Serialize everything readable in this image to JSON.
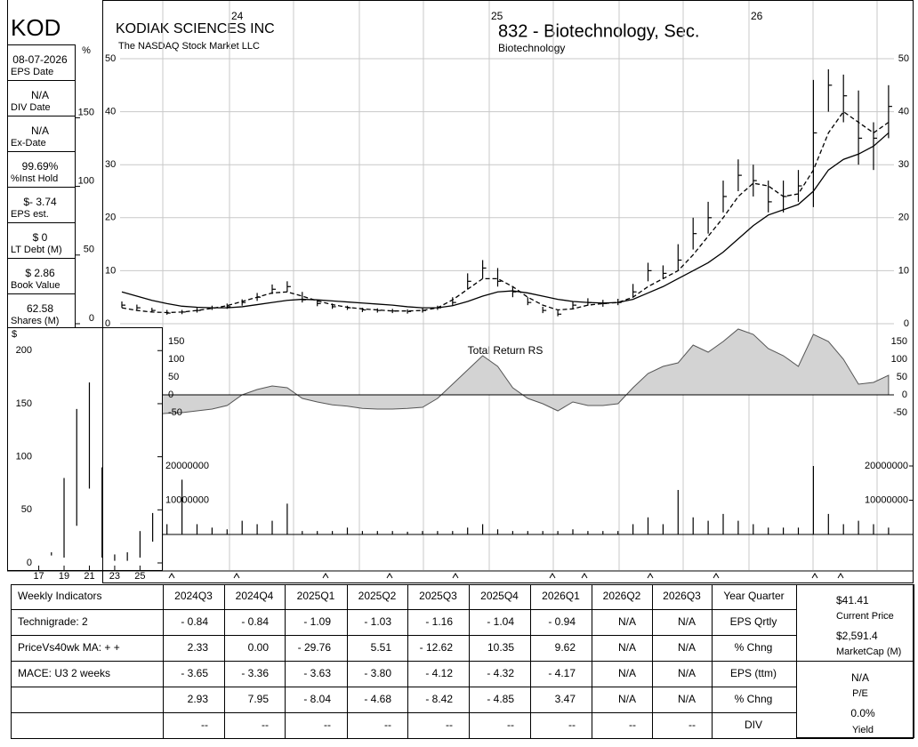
{
  "ticker": "KOD",
  "info": [
    {
      "value": "08-07-2026",
      "label": "EPS Date"
    },
    {
      "value": "N/A",
      "label": "DIV Date"
    },
    {
      "value": "N/A",
      "label": "Ex-Date"
    },
    {
      "value": "99.69%",
      "label": "%Inst Hold"
    },
    {
      "value": "$- 3.74",
      "label": "EPS est."
    },
    {
      "value": "$ 0",
      "label": "LT Debt (M)"
    },
    {
      "value": "$ 2.86",
      "label": "Book Value"
    },
    {
      "value": "62.58",
      "label": "Shares (M)"
    }
  ],
  "chart_data": [
    {
      "type": "hlc",
      "title": "KODIAK SCIENCES INC",
      "subtitle": "The NASDAQ Stock Market LLC",
      "sector": "832 - Biotechnology, Sec.",
      "industry": "Biotechnology",
      "high": [
        4.2,
        3.6,
        3,
        2.6,
        2.6,
        3,
        3.4,
        3.8,
        4.6,
        5.8,
        7.4,
        8,
        6,
        4.4,
        3.8,
        3.4,
        3,
        2.9,
        2.8,
        2.7,
        2.9,
        3.4,
        5,
        9.5,
        12,
        10.5,
        7,
        5,
        3.2,
        2.5,
        4.2,
        4.8,
        4.5,
        4.7,
        7.5,
        11.5,
        11,
        15,
        20,
        23,
        27,
        31,
        30,
        27,
        27,
        29,
        46,
        48,
        47,
        44,
        38,
        45
      ],
      "low": [
        3,
        2.6,
        2.1,
        1.7,
        1.8,
        2.1,
        2.6,
        2.8,
        3.4,
        4.3,
        5.6,
        6,
        4,
        3.3,
        2.8,
        2.6,
        2.2,
        2.1,
        2,
        1.9,
        2.1,
        2.6,
        3.4,
        6.5,
        8.5,
        7,
        5,
        3.5,
        2,
        1.4,
        2.8,
        3.4,
        3.2,
        3.5,
        5,
        8,
        8.5,
        10,
        14,
        17,
        21,
        25,
        24,
        21,
        21,
        23,
        22,
        40,
        38,
        30,
        29,
        35
      ],
      "close": [
        3.5,
        3,
        2.5,
        2,
        2.2,
        2.5,
        3,
        3.2,
        4,
        5,
        6.5,
        7,
        4.5,
        3.8,
        3.2,
        3,
        2.6,
        2.5,
        2.4,
        2.3,
        2.5,
        3,
        4,
        8,
        10.5,
        8,
        6,
        4,
        2.5,
        1.8,
        3.5,
        4,
        3.8,
        4,
        6,
        10,
        9.5,
        12,
        17,
        20,
        24,
        28,
        27,
        23,
        24,
        26,
        36,
        45,
        43,
        35,
        35,
        41
      ],
      "color": "#000000",
      "lines": [
        {
          "style": "dashed",
          "values": [
            3,
            2.5,
            2.2,
            2.1,
            2.2,
            2.5,
            2.9,
            3.4,
            4.2,
            5,
            5.8,
            6,
            5.2,
            4.3,
            3.6,
            3.1,
            2.8,
            2.6,
            2.4,
            2.4,
            2.5,
            3,
            4.5,
            6.5,
            8.5,
            8.5,
            7,
            5,
            3.5,
            2.6,
            2.8,
            3.5,
            3.8,
            4,
            5,
            7,
            8.5,
            10,
            13,
            16.5,
            20,
            24,
            26.5,
            26,
            24,
            24.5,
            29,
            36,
            40,
            38,
            36,
            38
          ]
        },
        {
          "style": "solid",
          "values": [
            6,
            5.2,
            4.4,
            3.8,
            3.3,
            3.1,
            3,
            3,
            3.2,
            3.6,
            4,
            4.4,
            4.6,
            4.5,
            4.3,
            4.1,
            3.9,
            3.7,
            3.5,
            3.2,
            3,
            3,
            3.4,
            4.2,
            5.2,
            6,
            6.2,
            5.8,
            5.2,
            4.6,
            4.2,
            4,
            3.9,
            4,
            4.6,
            5.8,
            7,
            8.5,
            10,
            11.5,
            13.5,
            16,
            18.5,
            20.5,
            21.5,
            22.5,
            25,
            29,
            31,
            32,
            33.5,
            36
          ]
        }
      ],
      "ylim": [
        0,
        50
      ],
      "yticks": [
        0,
        10,
        20,
        30,
        40,
        50
      ],
      "y2label": "%",
      "y2lim": [
        0,
        193
      ],
      "y2ticks": [
        0,
        50,
        100,
        150
      ],
      "year_labels": [
        "24",
        "25",
        "26"
      ],
      "grid": true
    },
    {
      "type": "area",
      "title": "Total Return RS",
      "color": "#d3d3d3",
      "values": [
        -60,
        -58,
        -55,
        -52,
        -50,
        -45,
        -40,
        -30,
        0,
        15,
        25,
        20,
        -10,
        -20,
        -28,
        -32,
        -38,
        -40,
        -40,
        -38,
        -35,
        -10,
        30,
        70,
        110,
        80,
        20,
        -10,
        -25,
        -45,
        -20,
        -30,
        -30,
        -25,
        20,
        60,
        80,
        90,
        140,
        120,
        150,
        185,
        170,
        130,
        110,
        80,
        170,
        150,
        100,
        30,
        35,
        55
      ],
      "ylim": [
        -90,
        190
      ],
      "yticks": [
        -50,
        0,
        50,
        100,
        150
      ]
    },
    {
      "type": "bar",
      "color": "#000000",
      "values": [
        2000000,
        1500000,
        1500000,
        3000000,
        16000000,
        3000000,
        2000000,
        1500000,
        4000000,
        3000000,
        4000000,
        9000000,
        1000000,
        1000000,
        1000000,
        2000000,
        1000000,
        1000000,
        1000000,
        800000,
        1000000,
        1000000,
        1000000,
        2000000,
        3000000,
        1500000,
        1000000,
        1000000,
        1000000,
        1000000,
        1500000,
        1000000,
        1000000,
        1000000,
        3000000,
        5000000,
        3000000,
        13000000,
        5000000,
        4000000,
        6000000,
        4000000,
        3000000,
        2000000,
        2000000,
        2000000,
        20000000,
        6000000,
        3000000,
        4000000,
        3000000,
        2000000
      ],
      "ylim": [
        0,
        20000000
      ],
      "yticks": [
        10000000,
        20000000
      ]
    },
    {
      "type": "hl",
      "ylabel": "$",
      "x": [
        18,
        19,
        20,
        21,
        22,
        23,
        24,
        25,
        26
      ],
      "high": [
        10,
        80,
        145,
        170,
        90,
        8,
        10,
        30,
        47
      ],
      "low": [
        7,
        5,
        35,
        70,
        5,
        2,
        2,
        5,
        20
      ],
      "xlim": [
        14.5,
        26.8
      ],
      "xticks": [
        17,
        19,
        21,
        23,
        25
      ],
      "ylim": [
        0,
        222
      ],
      "yticks": [
        0,
        50,
        100,
        150,
        200
      ]
    }
  ],
  "table": {
    "header": [
      "Weekly Indicators",
      "2024Q3",
      "2024Q4",
      "2025Q1",
      "2025Q2",
      "2025Q3",
      "2025Q4",
      "2026Q1",
      "2026Q2",
      "2026Q3",
      "Year Quarter"
    ],
    "indicators": [
      "Technigrade: 2",
      "PriceVs40wk MA: + +",
      "MACE: U3 2 weeks"
    ],
    "rows": [
      {
        "label": "EPS Qrtly",
        "values": [
          "- 0.84",
          "- 0.84",
          "- 1.09",
          "- 1.03",
          "- 1.16",
          "- 1.04",
          "- 0.94",
          "N/A",
          "N/A"
        ]
      },
      {
        "label": "% Chng",
        "values": [
          "2.33",
          "0.00",
          "- 29.76",
          "5.51",
          "- 12.62",
          "10.35",
          "9.62",
          "N/A",
          "N/A"
        ]
      },
      {
        "label": "EPS (ttm)",
        "values": [
          "- 3.65",
          "- 3.36",
          "- 3.63",
          "- 3.80",
          "- 4.12",
          "- 4.32",
          "- 4.17",
          "N/A",
          "N/A"
        ]
      },
      {
        "label": "% Chng",
        "values": [
          "2.93",
          "7.95",
          "- 8.04",
          "- 4.68",
          "- 8.42",
          "- 4.85",
          "3.47",
          "N/A",
          "N/A"
        ]
      },
      {
        "label": "DIV",
        "values": [
          "--",
          "--",
          "--",
          "--",
          "--",
          "--",
          "--",
          "--",
          "--"
        ]
      }
    ]
  },
  "summary": [
    {
      "value": "$41.41",
      "label": "Current Price"
    },
    {
      "value": "$2,591.4",
      "label": "MarketCap (M)"
    },
    {
      "value": "N/A",
      "label": "P/E"
    },
    {
      "value": "0.0%",
      "label": "Yield"
    }
  ]
}
